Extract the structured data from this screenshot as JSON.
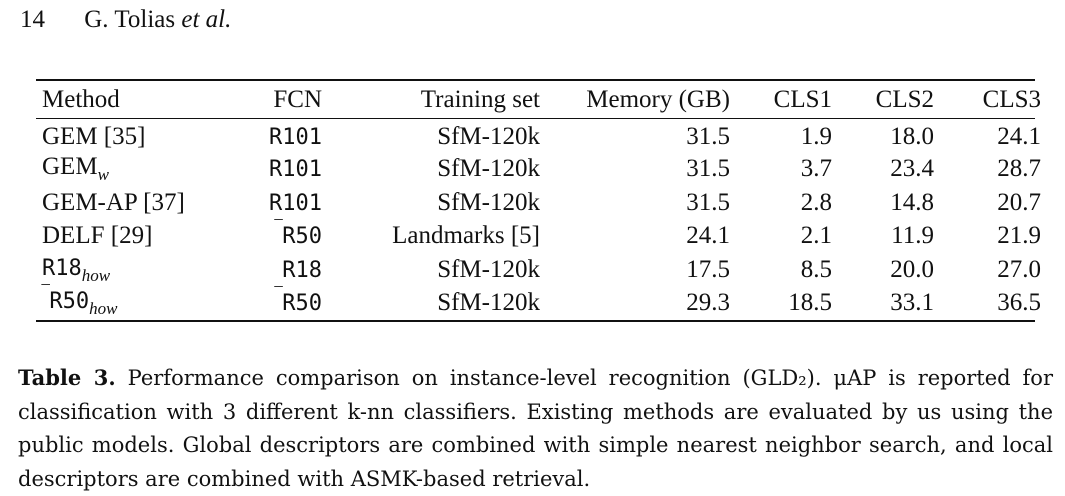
{
  "header": {
    "page_number": "14",
    "authors": "G. Tolias",
    "etal": "et al."
  },
  "table": {
    "columns": [
      "Method",
      "FCN",
      "Training set",
      "Memory (GB)",
      "CLS1",
      "CLS2",
      "CLS3"
    ],
    "rows": [
      {
        "method": "GEM [35]",
        "fcn": "R101",
        "training_set": "SfM-120k",
        "memory": "31.5",
        "cls1": "1.9",
        "cls2": "18.0",
        "cls3": "24.1"
      },
      {
        "method": "GEM",
        "method_sub": "w",
        "fcn": "R101",
        "training_set": "SfM-120k",
        "memory": "31.5",
        "cls1": "3.7",
        "cls2": "23.4",
        "cls3": "28.7"
      },
      {
        "method": "GEM-AP [37]",
        "fcn": "R101",
        "training_set": "SfM-120k",
        "memory": "31.5",
        "cls1": "2.8",
        "cls2": "14.8",
        "cls3": "20.7"
      },
      {
        "method": "DELF [29]",
        "fcn_prefix": "‾",
        "fcn": "R50",
        "training_set": "Landmarks [5]",
        "memory": "24.1",
        "cls1": "2.1",
        "cls2": "11.9",
        "cls3": "21.9"
      },
      {
        "method": "R18",
        "method_sub": "how",
        "fcn": "R18",
        "training_set": "SfM-120k",
        "memory": "17.5",
        "cls1": "8.5",
        "cls2": "20.0",
        "cls3": "27.0"
      },
      {
        "method_prefix": "‾",
        "method": "R50",
        "method_sub": "how",
        "fcn_prefix": "‾",
        "fcn": "R50",
        "training_set": "SfM-120k",
        "memory": "29.3",
        "cls1": "18.5",
        "cls2": "33.1",
        "cls3": "36.5"
      }
    ]
  },
  "caption": {
    "label": "Table 3.",
    "text": " Performance comparison on instance-level recognition (GLD₂). μAP is reported for classification with 3 different k-nn classifiers. Existing methods are evaluated by us using the public models. Global descriptors are combined with simple nearest neighbor search, and local descriptors are combined with ASMK-based retrieval."
  }
}
